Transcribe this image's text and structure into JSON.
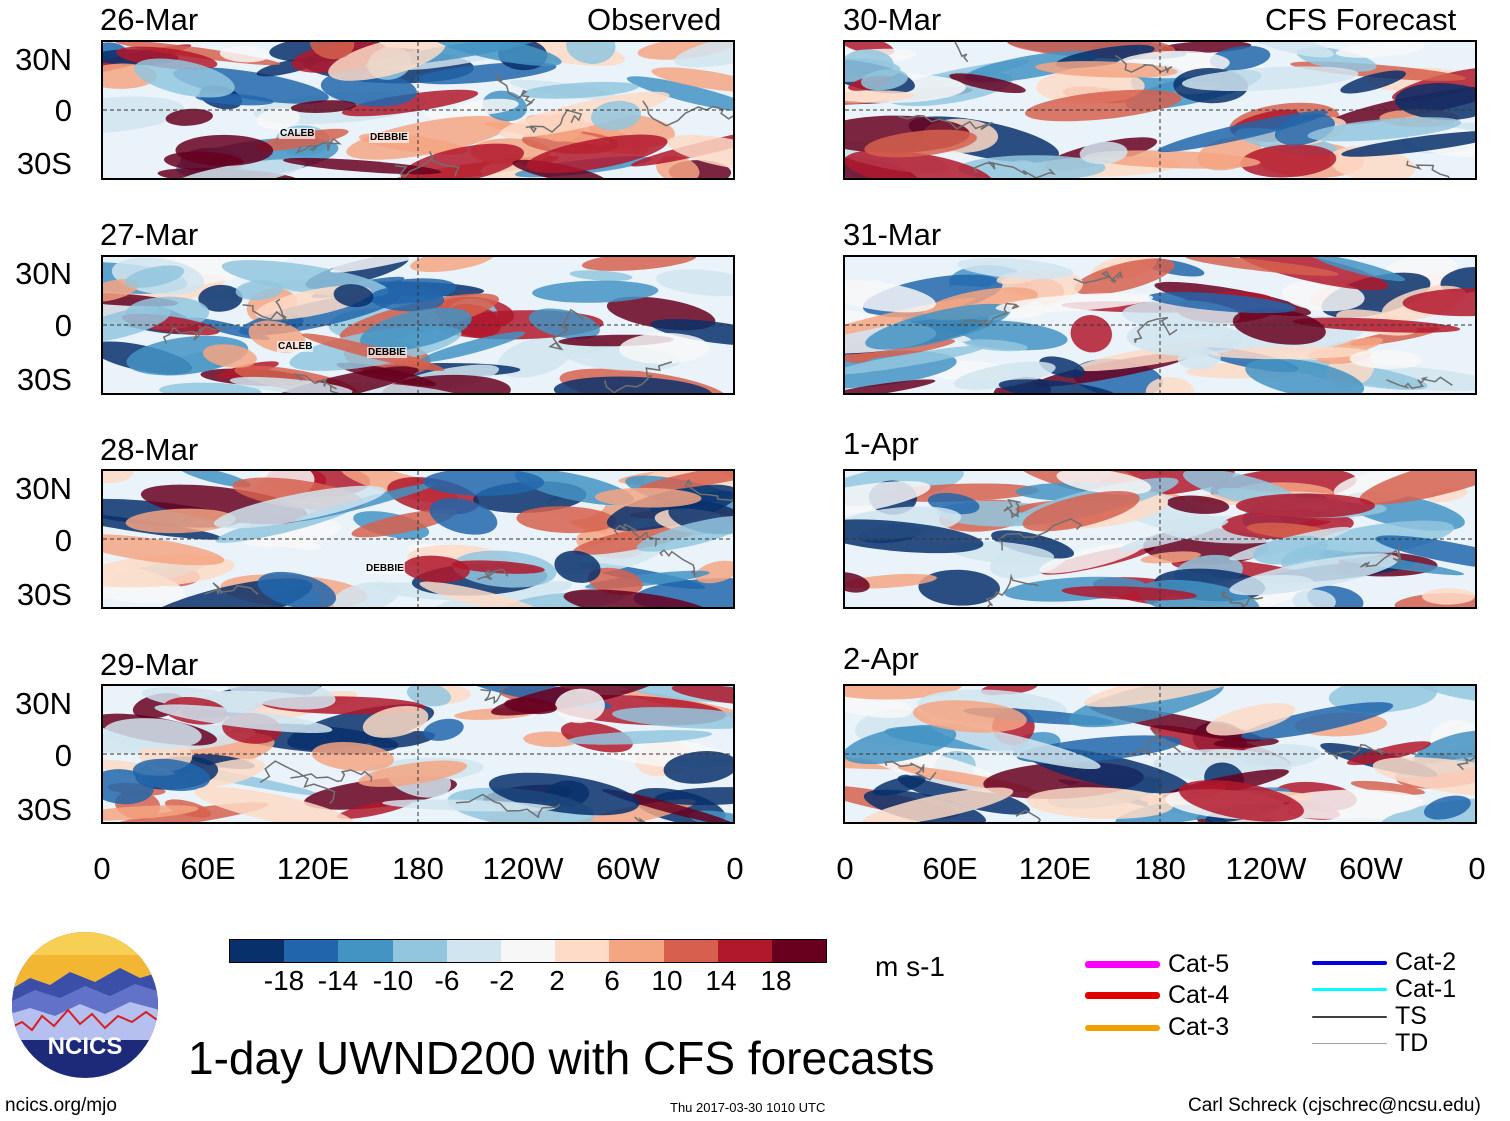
{
  "title": "1-day UWND200 with CFS forecasts",
  "headers": {
    "observed": "Observed",
    "forecast": "CFS Forecast"
  },
  "lat_labels": [
    "30N",
    "0",
    "30S"
  ],
  "lon_labels": [
    "0",
    "60E",
    "120E",
    "180",
    "120W",
    "60W",
    "0"
  ],
  "panels": {
    "observed": [
      {
        "date": "26-Mar",
        "storms": [
          "CALEB",
          "DEBBIE"
        ]
      },
      {
        "date": "27-Mar",
        "storms": [
          "CALEB",
          "DEBBIE"
        ]
      },
      {
        "date": "28-Mar",
        "storms": [
          "DEBBIE"
        ]
      },
      {
        "date": "29-Mar",
        "storms": []
      }
    ],
    "forecast": [
      {
        "date": "30-Mar"
      },
      {
        "date": "31-Mar"
      },
      {
        "date": "1-Apr"
      },
      {
        "date": "2-Apr"
      }
    ]
  },
  "colorbar": {
    "ticks": [
      "-18",
      "-14",
      "-10",
      "-6",
      "-2",
      "2",
      "6",
      "10",
      "14",
      "18"
    ],
    "colors": [
      "#08306b",
      "#2166ac",
      "#4393c3",
      "#92c5de",
      "#d1e5f0",
      "#f7f7f7",
      "#fddbc7",
      "#f4a582",
      "#d6604d",
      "#b2182b",
      "#67001f"
    ],
    "units": "m s-1"
  },
  "legend": [
    {
      "label": "Cat-5",
      "color": "#ff00ff"
    },
    {
      "label": "Cat-4",
      "color": "#e00000"
    },
    {
      "label": "Cat-3",
      "color": "#f0a000"
    },
    {
      "label": "Cat-2",
      "color": "#0000e0"
    },
    {
      "label": "Cat-1",
      "color": "#00ffff"
    },
    {
      "label": "TS",
      "color": "#404040"
    },
    {
      "label": "TD",
      "color": "#a0a0a0"
    }
  ],
  "logo": {
    "text": "NCICS"
  },
  "footer": {
    "url": "ncics.org/mjo",
    "timestamp": "Thu 2017-03-30 1010 UTC",
    "credit": "Carl Schreck (cjschrec@ncsu.edu)"
  }
}
